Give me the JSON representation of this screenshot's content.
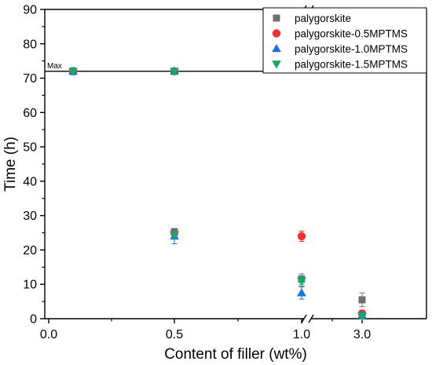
{
  "chart_data": {
    "type": "scatter",
    "xlabel": "Content of filler (wt%)",
    "ylabel": "Time (h)",
    "x_ticks": [
      "0.0",
      "0.5",
      "1.0",
      "3.0"
    ],
    "x_axis_break_between": [
      "1.0",
      "3.0"
    ],
    "ylim": [
      0,
      90
    ],
    "y_ticks": [
      0,
      10,
      20,
      30,
      40,
      50,
      60,
      70,
      80,
      90
    ],
    "grid": false,
    "legend_position": "top-right",
    "annotation": {
      "text": "Max",
      "y": 72
    },
    "series": [
      {
        "name": "palygorskite",
        "color": "#707070",
        "marker": "square",
        "points": [
          {
            "x": "0.1",
            "y": 72,
            "err": 1
          },
          {
            "x": "0.5",
            "y": 72,
            "err": 0.8
          },
          {
            "x": "0.5",
            "y": 25.2,
            "err": 1
          },
          {
            "x": "1.0",
            "y": 11.5,
            "err": 1.5
          },
          {
            "x": "3.0",
            "y": 5.5,
            "err": 2
          }
        ]
      },
      {
        "name": "palygorskite-0.5MPTMS",
        "color": "#ee3333",
        "marker": "circle",
        "points": [
          {
            "x": "0.1",
            "y": 72,
            "err": 1
          },
          {
            "x": "0.5",
            "y": 72,
            "err": 0.8
          },
          {
            "x": "0.5",
            "y": 25,
            "err": 1
          },
          {
            "x": "1.0",
            "y": 24,
            "err": 1.5
          },
          {
            "x": "3.0",
            "y": 1.5,
            "err": 1
          }
        ]
      },
      {
        "name": "palygorskite-1.0MPTMS",
        "color": "#1f6fdc",
        "marker": "triangle-up",
        "points": [
          {
            "x": "0.1",
            "y": 72,
            "err": 1
          },
          {
            "x": "0.5",
            "y": 72,
            "err": 0.8
          },
          {
            "x": "0.5",
            "y": 24,
            "err": 2.2
          },
          {
            "x": "1.0",
            "y": 7.5,
            "err": 1.8
          },
          {
            "x": "3.0",
            "y": 1,
            "err": 0.8
          }
        ]
      },
      {
        "name": "palygorskite-1.5MPTMS",
        "color": "#13aa66",
        "marker": "triangle-down",
        "points": [
          {
            "x": "0.1",
            "y": 72,
            "err": 1
          },
          {
            "x": "0.5",
            "y": 72,
            "err": 0.8
          },
          {
            "x": "0.5",
            "y": 24.5,
            "err": 1
          },
          {
            "x": "1.0",
            "y": 11,
            "err": 1.5
          },
          {
            "x": "3.0",
            "y": 0.8,
            "err": 0.8
          }
        ]
      }
    ]
  }
}
